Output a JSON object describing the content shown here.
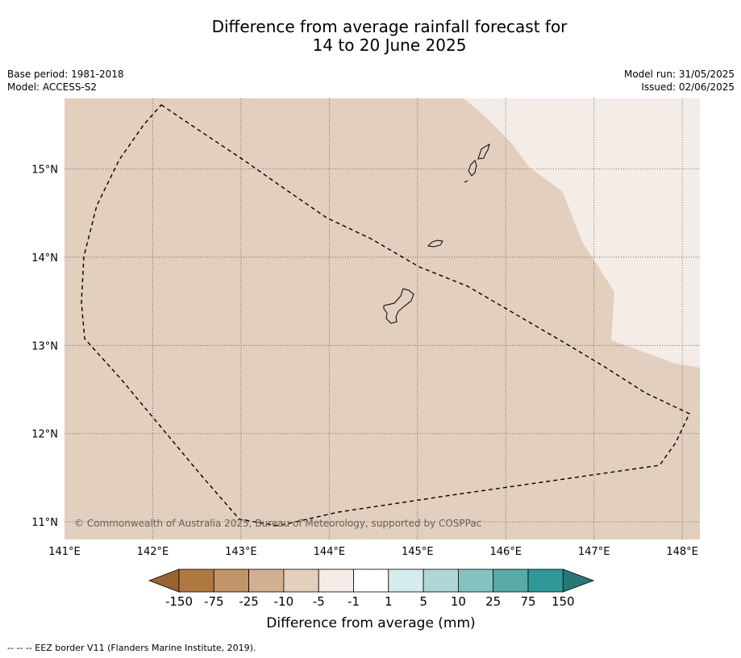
{
  "title": {
    "line1": "Difference from average rainfall forecast for",
    "line2": "14 to 20 June 2025"
  },
  "info": {
    "base_period": "Base period: 1981-2018",
    "model": "Model: ACCESS-S2",
    "model_run": "Model run: 31/05/2025",
    "issued": "Issued: 02/06/2025"
  },
  "map": {
    "lon_range": [
      141,
      148.2
    ],
    "lat_range": [
      10.8,
      15.8
    ],
    "lon_ticks": [
      "141°E",
      "142°E",
      "143°E",
      "144°E",
      "145°E",
      "146°E",
      "147°E",
      "148°E"
    ],
    "lat_ticks": [
      "15°N",
      "14°N",
      "13°N",
      "12°N",
      "11°N"
    ],
    "gridlines": true,
    "copyright": "© Commonwealth of Australia 2025, Bureau of Meteorology, supported by COSPPac",
    "fill_colors": {
      "dry_moderate": "#e2cfbe",
      "dry_slight": "#f4ece6"
    }
  },
  "colorbar": {
    "labels": [
      "-150",
      "-75",
      "-25",
      "-10",
      "-5",
      "-1",
      "1",
      "5",
      "10",
      "25",
      "75",
      "150"
    ],
    "colors": [
      "#9a6431",
      "#b07940",
      "#c29468",
      "#d3b091",
      "#e2cfbe",
      "#f4ece6",
      "#ffffff",
      "#d5ecec",
      "#aed7d5",
      "#84c2c0",
      "#57acaa",
      "#2f9898",
      "#267878"
    ],
    "title": "Difference from average (mm)"
  },
  "footnote": "--  --  -- EEZ border V11 (Flanders Marine Institute, 2019)."
}
